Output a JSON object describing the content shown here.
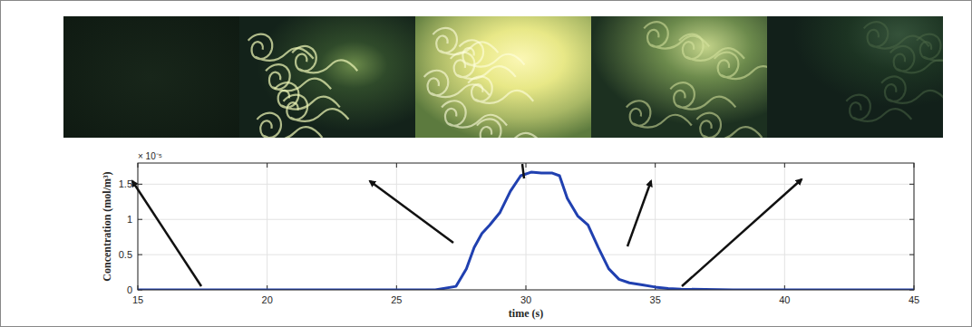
{
  "chart_data": {
    "type": "line",
    "x_label": "time (s)",
    "y_label": "Concentration (mol/m³)",
    "y_scale_label": "× 10⁻⁵",
    "x": [
      15,
      20,
      25,
      26.5,
      27.3,
      27.7,
      28,
      28.3,
      28.6,
      29,
      29.4,
      29.8,
      30.2,
      30.6,
      31,
      31.3,
      31.6,
      32,
      32.4,
      32.8,
      33.2,
      33.6,
      34,
      34.5,
      35,
      35.5,
      36,
      38,
      40,
      45
    ],
    "values": [
      0,
      0,
      0,
      0,
      0.05,
      0.3,
      0.6,
      0.8,
      0.92,
      1.1,
      1.4,
      1.62,
      1.67,
      1.66,
      1.66,
      1.62,
      1.3,
      1.05,
      0.92,
      0.6,
      0.3,
      0.15,
      0.1,
      0.07,
      0.04,
      0.02,
      0.01,
      0,
      0,
      0
    ],
    "color": "#2040b0",
    "xlim": [
      15,
      45
    ],
    "xticks": [
      15,
      20,
      25,
      30,
      35,
      40,
      45
    ],
    "ylim": [
      0,
      1.8
    ],
    "yticks": [
      0,
      0.5,
      1,
      1.5
    ],
    "grid": true
  }
}
